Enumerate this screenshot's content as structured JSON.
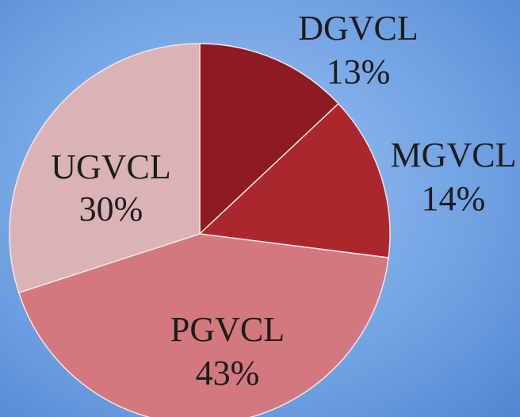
{
  "chart_data": {
    "type": "pie",
    "categories": [
      "DGVCL",
      "MGVCL",
      "PGVCL",
      "UGVCL"
    ],
    "values": [
      13,
      14,
      43,
      30
    ],
    "value_labels": [
      "13%",
      "14%",
      "43%",
      "30%"
    ],
    "colors": [
      "#8e1b22",
      "#ab262d",
      "#d4787f",
      "#dbb3b6"
    ]
  }
}
